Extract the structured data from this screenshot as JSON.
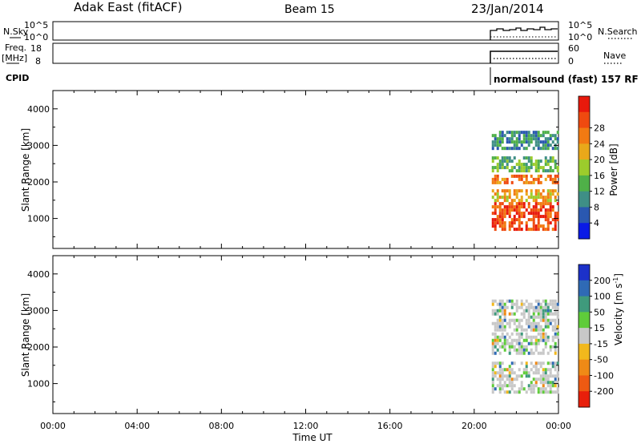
{
  "header": {
    "title": "Adak East (fitACF)",
    "beam": "Beam 15",
    "date": "23/Jan/2014"
  },
  "strip_labels": {
    "nsky": "N.Sky",
    "nsearch": "N.Search",
    "freq_line1": "Freq.",
    "freq_line2": "[MHz]",
    "nave": "Nave",
    "cpid": "CPID",
    "noise_ticks_left": [
      "10^5",
      "10^0"
    ],
    "noise_ticks_right": [
      "10^5",
      "10^0"
    ],
    "freq_ticks": [
      "18",
      "8"
    ],
    "nave_ticks": [
      "60",
      "0"
    ],
    "cpid_text": "normalsound (fast) 157 RF"
  },
  "colorbars": {
    "power": {
      "label": "Power [dB]",
      "ticks": [
        "4",
        "8",
        "12",
        "16",
        "20",
        "24",
        "28"
      ],
      "colors": [
        "#0a1ae6",
        "#2a58b0",
        "#3f8f86",
        "#4fb048",
        "#9ccc2c",
        "#e9a81a",
        "#f27a12",
        "#ef4a10",
        "#e8190c"
      ]
    },
    "velocity": {
      "label": "Velocity [m s",
      "label_sup": "-1",
      "label_end": "]",
      "ticks": [
        "200",
        "100",
        "50",
        "15",
        "-15",
        "-50",
        "-100",
        "-200"
      ],
      "colors": [
        "#1c31c9",
        "#2f6ab5",
        "#3f9a7c",
        "#5fcc3a",
        "#c8c8c8",
        "#f2b81c",
        "#ef8a16",
        "#ee5a12",
        "#e81f0b"
      ]
    }
  },
  "chart_data": [
    {
      "type": "heatmap",
      "panel": "power",
      "ylabel": "Slant Range [km]",
      "xlabel": "",
      "x_ticks": [
        "00:00",
        "04:00",
        "08:00",
        "12:00",
        "16:00",
        "20:00",
        "00:00"
      ],
      "y_ticks": [
        1000,
        2000,
        3000,
        4000
      ],
      "xlim": [
        "00:00",
        "24:00"
      ],
      "ylim": [
        180,
        4500
      ],
      "data_start": "20:50",
      "data_end": "24:00",
      "bands": [
        {
          "range_km": [
            700,
            1450
          ],
          "value": 26
        },
        {
          "range_km": [
            1450,
            1800
          ],
          "value": 18
        },
        {
          "range_km": [
            1950,
            2200
          ],
          "value": 22
        },
        {
          "range_km": [
            2300,
            2700
          ],
          "value": 12
        },
        {
          "range_km": [
            2900,
            3400
          ],
          "value": 8
        }
      ]
    },
    {
      "type": "heatmap",
      "panel": "velocity",
      "ylabel": "Slant Range [km]",
      "xlabel": "Time UT",
      "x_ticks": [
        "00:00",
        "04:00",
        "08:00",
        "12:00",
        "16:00",
        "20:00",
        "00:00"
      ],
      "y_ticks": [
        1000,
        2000,
        3000,
        4000
      ],
      "xlim": [
        "00:00",
        "24:00"
      ],
      "ylim": [
        180,
        4500
      ],
      "data_start": "20:50",
      "data_end": "24:00",
      "bands": [
        {
          "range_km": [
            800,
            1600
          ],
          "value": 0
        },
        {
          "range_km": [
            1800,
            2400
          ],
          "value": 0
        },
        {
          "range_km": [
            2500,
            3300
          ],
          "value": 20
        }
      ]
    }
  ]
}
